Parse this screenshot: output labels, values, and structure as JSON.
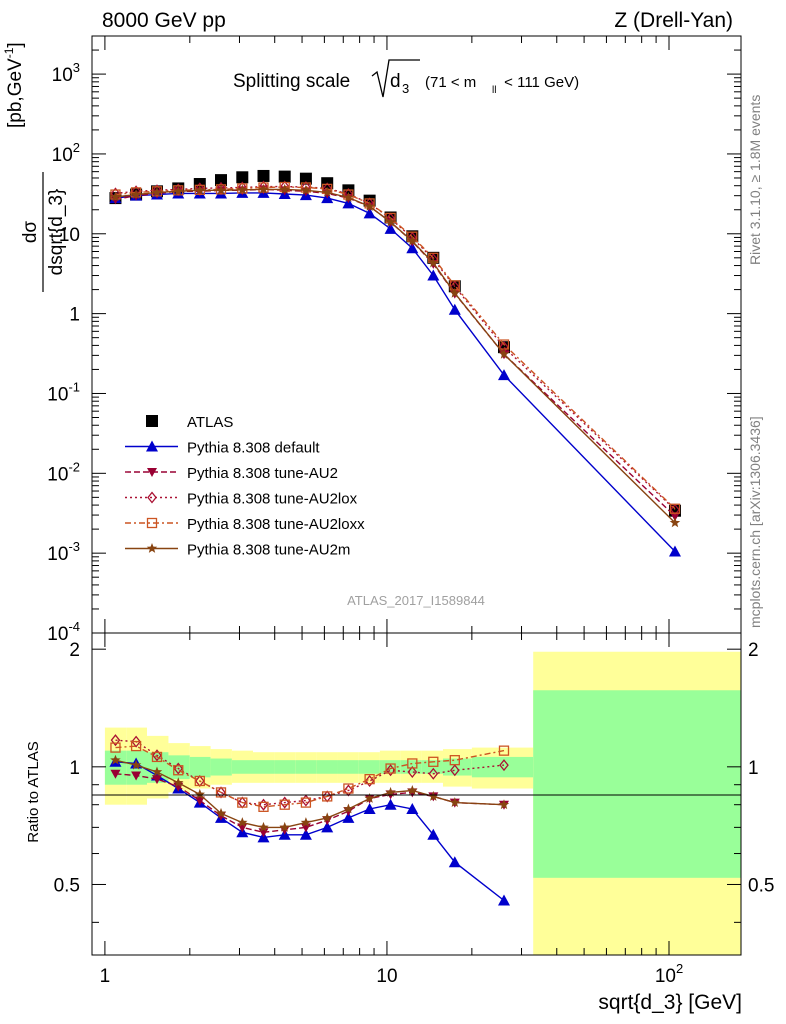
{
  "header": {
    "left": "8000 GeV pp",
    "right": "Z (Drell-Yan)"
  },
  "plot_title": {
    "main": "Splitting scale",
    "symbol": "d",
    "sub": "3",
    "cut": "(71 < m",
    "cut_sub": "ll",
    "cut_tail": " < 111 GeV)"
  },
  "side_labels": {
    "rivet": "Rivet 3.1.10, ≥ 1.8M events",
    "mcplots": "mcplots.cern.ch [arXiv:1306.3436]"
  },
  "watermark": "ATLAS_2017_I1589844",
  "colors": {
    "data": "#000000",
    "default": "#0000cc",
    "au2": "#990033",
    "au2lox": "#aa1133",
    "au2loxx": "#cc5522",
    "au2m": "#884411",
    "band_inner": "#99ff99",
    "band_outer": "#ffff99"
  },
  "chart_data": [
    {
      "type": "line",
      "panel": "main",
      "ylabel_num": "dσ",
      "ylabel_den": "dsqrt{d_3}",
      "ylabel_unit": "[pb,GeV",
      "ylabel_unit_exp": "-1",
      "ylabel_unit_end": "]",
      "xscale": "log",
      "yscale": "log",
      "xlim": [
        0.9,
        180
      ],
      "ylim": [
        0.0001,
        3000
      ],
      "yticks": [
        "10^-4",
        "10^-3",
        "10^-2",
        "10^-1",
        "1",
        "10",
        "10^2",
        "10^3"
      ],
      "legend_position": "bottom-left",
      "x": [
        1.09,
        1.29,
        1.53,
        1.82,
        2.17,
        2.58,
        3.07,
        3.65,
        4.34,
        5.16,
        6.14,
        7.3,
        8.68,
        10.3,
        12.3,
        14.6,
        17.4,
        26.0,
        105.0
      ],
      "series": [
        {
          "name": "ATLAS",
          "key": "data",
          "marker": "square",
          "values": [
            28,
            31,
            34,
            37,
            42,
            47,
            51,
            53,
            52,
            49,
            43,
            35,
            26,
            16,
            9.3,
            5.0,
            2.2,
            0.38,
            0.0034
          ]
        },
        {
          "name": "Pythia 8.308 default",
          "key": "default",
          "marker": "triangle-up",
          "values": [
            28,
            30,
            31,
            32,
            32,
            32,
            32.5,
            32.5,
            31.5,
            30.5,
            28,
            24,
            18,
            11.5,
            6.6,
            3.0,
            1.12,
            0.17,
            0.00105
          ]
        },
        {
          "name": "Pythia 8.308 tune-AU2",
          "key": "au2",
          "marker": "triangle-down",
          "values": [
            27,
            30,
            32,
            34,
            34,
            35,
            35,
            36,
            35,
            34,
            32,
            28,
            22,
            14,
            8.0,
            4.2,
            1.78,
            0.31,
            0.0029
          ]
        },
        {
          "name": "Pythia 8.308 tune-AU2lox",
          "key": "au2lox",
          "marker": "diamond-open",
          "values": [
            32,
            34,
            35,
            36,
            37,
            37.5,
            38,
            39,
            39,
            38.5,
            37,
            31.5,
            24,
            15.5,
            8.9,
            4.8,
            2.18,
            0.38,
            0.0035
          ]
        },
        {
          "name": "Pythia 8.308 tune-AU2loxx",
          "key": "au2loxx",
          "marker": "square-open",
          "values": [
            31,
            33,
            34,
            35,
            35.5,
            36,
            37,
            38,
            38.5,
            38,
            36.5,
            31,
            24,
            15.8,
            9.2,
            5.0,
            2.26,
            0.41,
            0.0036
          ]
        },
        {
          "name": "Pythia 8.308 tune-AU2m",
          "key": "au2m",
          "marker": "star",
          "values": [
            29,
            31,
            33,
            34,
            35,
            35,
            35.5,
            36,
            36,
            35,
            33,
            28.5,
            22,
            14,
            8.1,
            4.3,
            1.8,
            0.31,
            0.0024
          ]
        }
      ]
    },
    {
      "type": "line",
      "panel": "ratio",
      "ylabel": "Ratio to ATLAS",
      "xlabel": "sqrt{d_3} [GeV]",
      "xscale": "log",
      "xlim": [
        0.9,
        180
      ],
      "ylim": [
        0.33,
        2.2
      ],
      "yticks": [
        "0.5",
        "1",
        "2"
      ],
      "xticks": [
        "1",
        "10",
        "10^2"
      ],
      "bins": [
        {
          "lo": 1.0,
          "hi": 1.19,
          "inner": [
            0.9,
            1.1
          ],
          "outer": [
            0.8,
            1.26
          ]
        },
        {
          "lo": 1.19,
          "hi": 1.41,
          "inner": [
            0.9,
            1.1
          ],
          "outer": [
            0.8,
            1.26
          ]
        },
        {
          "lo": 1.41,
          "hi": 1.68,
          "inner": [
            0.91,
            1.09
          ],
          "outer": [
            0.83,
            1.2
          ]
        },
        {
          "lo": 1.68,
          "hi": 2.0,
          "inner": [
            0.93,
            1.07
          ],
          "outer": [
            0.86,
            1.15
          ]
        },
        {
          "lo": 2.0,
          "hi": 2.37,
          "inner": [
            0.94,
            1.06
          ],
          "outer": [
            0.88,
            1.13
          ]
        },
        {
          "lo": 2.37,
          "hi": 2.82,
          "inner": [
            0.95,
            1.05
          ],
          "outer": [
            0.9,
            1.11
          ]
        },
        {
          "lo": 2.82,
          "hi": 3.35,
          "inner": [
            0.96,
            1.04
          ],
          "outer": [
            0.91,
            1.1
          ]
        },
        {
          "lo": 3.35,
          "hi": 3.98,
          "inner": [
            0.96,
            1.04
          ],
          "outer": [
            0.91,
            1.09
          ]
        },
        {
          "lo": 3.98,
          "hi": 4.73,
          "inner": [
            0.96,
            1.04
          ],
          "outer": [
            0.91,
            1.09
          ]
        },
        {
          "lo": 4.73,
          "hi": 5.62,
          "inner": [
            0.96,
            1.04
          ],
          "outer": [
            0.91,
            1.09
          ]
        },
        {
          "lo": 5.62,
          "hi": 6.68,
          "inner": [
            0.96,
            1.04
          ],
          "outer": [
            0.91,
            1.09
          ]
        },
        {
          "lo": 6.68,
          "hi": 7.94,
          "inner": [
            0.96,
            1.04
          ],
          "outer": [
            0.91,
            1.09
          ]
        },
        {
          "lo": 7.94,
          "hi": 9.44,
          "inner": [
            0.96,
            1.04
          ],
          "outer": [
            0.91,
            1.09
          ]
        },
        {
          "lo": 9.44,
          "hi": 11.2,
          "inner": [
            0.96,
            1.04
          ],
          "outer": [
            0.91,
            1.1
          ]
        },
        {
          "lo": 11.2,
          "hi": 13.3,
          "inner": [
            0.96,
            1.04
          ],
          "outer": [
            0.91,
            1.1
          ]
        },
        {
          "lo": 13.3,
          "hi": 15.8,
          "inner": [
            0.96,
            1.04
          ],
          "outer": [
            0.91,
            1.1
          ]
        },
        {
          "lo": 15.8,
          "hi": 20.0,
          "inner": [
            0.95,
            1.05
          ],
          "outer": [
            0.89,
            1.11
          ]
        },
        {
          "lo": 20.0,
          "hi": 33.0,
          "inner": [
            0.94,
            1.06
          ],
          "outer": [
            0.88,
            1.12
          ]
        },
        {
          "lo": 33.0,
          "hi": 180.0,
          "inner": [
            0.52,
            1.57
          ],
          "outer": [
            0.33,
            1.97
          ]
        }
      ],
      "x": [
        1.09,
        1.29,
        1.53,
        1.82,
        2.17,
        2.58,
        3.07,
        3.65,
        4.34,
        5.16,
        6.14,
        7.3,
        8.68,
        10.3,
        12.3,
        14.6,
        17.4,
        26.0,
        105.0
      ],
      "series": [
        {
          "name": "Pythia 8.308 default",
          "key": "default",
          "marker": "triangle-up",
          "values": [
            1.03,
            1.02,
            0.95,
            0.88,
            0.81,
            0.74,
            0.68,
            0.66,
            0.67,
            0.67,
            0.7,
            0.74,
            0.78,
            0.8,
            0.78,
            0.67,
            0.57,
            0.455,
            null
          ]
        },
        {
          "name": "Pythia 8.308 tune-AU2",
          "key": "au2",
          "marker": "triangle-down",
          "values": [
            0.96,
            0.95,
            0.93,
            0.89,
            0.82,
            0.75,
            0.7,
            0.68,
            0.69,
            0.7,
            0.73,
            0.77,
            0.83,
            0.85,
            0.86,
            0.84,
            0.81,
            0.8,
            null
          ]
        },
        {
          "name": "Pythia 8.308 tune-AU2lox",
          "key": "au2lox",
          "marker": "diamond-open",
          "values": [
            1.17,
            1.16,
            1.07,
            0.99,
            0.92,
            0.86,
            0.81,
            0.8,
            0.81,
            0.82,
            0.84,
            0.87,
            0.92,
            0.98,
            0.97,
            0.96,
            0.98,
            1.01,
            null
          ]
        },
        {
          "name": "Pythia 8.308 tune-AU2loxx",
          "key": "au2loxx",
          "marker": "square-open",
          "values": [
            1.12,
            1.13,
            1.06,
            0.98,
            0.92,
            0.86,
            0.81,
            0.79,
            0.8,
            0.81,
            0.84,
            0.88,
            0.93,
            0.99,
            1.02,
            1.03,
            1.04,
            1.1,
            null
          ]
        },
        {
          "name": "Pythia 8.308 tune-AU2m",
          "key": "au2m",
          "marker": "star",
          "values": [
            1.04,
            1.01,
            0.97,
            0.91,
            0.85,
            0.76,
            0.72,
            0.7,
            0.7,
            0.72,
            0.74,
            0.78,
            0.83,
            0.86,
            0.87,
            0.84,
            0.81,
            0.8,
            null
          ]
        }
      ]
    }
  ]
}
